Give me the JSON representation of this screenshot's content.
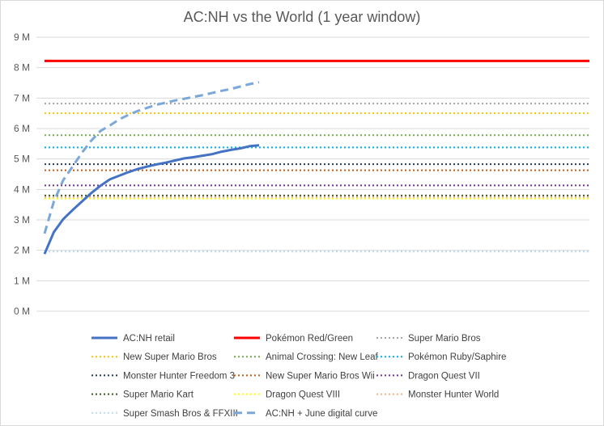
{
  "chart_data": {
    "type": "line",
    "title": "AC:NH vs the World (1 year window)",
    "ylim": [
      0,
      9
    ],
    "y_ticks": [
      "0 M",
      "1 M",
      "2 M",
      "3 M",
      "4 M",
      "5 M",
      "6 M",
      "7 M",
      "8 M",
      "9 M"
    ],
    "grid": "horizontal",
    "legend_position": "bottom",
    "x_weeks": 52,
    "series": [
      {
        "name": "AC:NH retail",
        "color": "#4472C4",
        "style": "solid",
        "width": 3,
        "x": [
          0,
          1,
          2,
          3,
          4,
          5,
          6,
          7,
          8,
          9,
          10,
          11,
          12,
          13,
          14,
          15,
          16,
          17,
          18,
          19,
          20,
          21,
          22,
          23
        ],
        "y": [
          1.88,
          2.6,
          3.02,
          3.32,
          3.6,
          3.88,
          4.12,
          4.33,
          4.45,
          4.57,
          4.67,
          4.75,
          4.82,
          4.88,
          4.95,
          5.02,
          5.06,
          5.11,
          5.16,
          5.24,
          5.3,
          5.35,
          5.42,
          5.45
        ]
      },
      {
        "name": "Pokémon Red/Green",
        "color": "#FF0000",
        "style": "solid",
        "width": 3,
        "y_const": 8.22
      },
      {
        "name": "Super Mario Bros",
        "color": "#A5A5A5",
        "style": "dotted",
        "width": 2,
        "y_const": 6.82
      },
      {
        "name": "New Super Mario Bros",
        "color": "#FFC000",
        "style": "dotted",
        "width": 2,
        "y_const": 6.5
      },
      {
        "name": "Animal Crossing: New Leaf",
        "color": "#70AD47",
        "style": "dotted",
        "width": 2,
        "y_const": 5.78
      },
      {
        "name": "Pokémon Ruby/Saphire",
        "color": "#00B0F0",
        "style": "dotted",
        "width": 2,
        "y_const": 5.38
      },
      {
        "name": "Monster Hunter Freedom 3",
        "color": "#203864",
        "style": "dotted",
        "width": 2,
        "y_const": 4.83
      },
      {
        "name": "New Super Mario Bros Wii",
        "color": "#C55A11",
        "style": "dotted",
        "width": 2,
        "y_const": 4.63
      },
      {
        "name": "Dragon Quest VII",
        "color": "#7030A0",
        "style": "dotted",
        "width": 2,
        "y_const": 4.13
      },
      {
        "name": "Super Mario Kart",
        "color": "#375623",
        "style": "dotted",
        "width": 2,
        "y_const": 3.8
      },
      {
        "name": "Dragon Quest VIII",
        "color": "#FFFF00",
        "style": "dotted",
        "width": 2,
        "y_const": 3.7
      },
      {
        "name": "Monster Hunter World",
        "color": "#F4B183",
        "style": "dotted",
        "width": 2,
        "y_const": 3.75
      },
      {
        "name": "Super Smash Bros & FFXIII",
        "color": "#BDD7EE",
        "style": "dotted",
        "width": 2,
        "y_const": 1.96
      },
      {
        "name": "AC:NH + June digital curve",
        "color": "#7BA7D9",
        "style": "dashed",
        "width": 3,
        "x": [
          0,
          1,
          2,
          3,
          4,
          5,
          6,
          7,
          8,
          9,
          10,
          11,
          12,
          13,
          14,
          15,
          16,
          17,
          18,
          19,
          20,
          21,
          22,
          23
        ],
        "y": [
          2.55,
          3.6,
          4.3,
          4.75,
          5.2,
          5.6,
          5.92,
          6.1,
          6.3,
          6.45,
          6.58,
          6.68,
          6.78,
          6.85,
          6.92,
          6.98,
          7.04,
          7.1,
          7.17,
          7.24,
          7.3,
          7.38,
          7.46,
          7.52
        ]
      }
    ],
    "legend_labels": [
      "AC:NH retail",
      "Pokémon Red/Green",
      "Super Mario Bros",
      "New Super Mario Bros",
      "Animal Crossing: New Leaf",
      "Pokémon Ruby/Saphire",
      "Monster Hunter Freedom 3",
      "New Super Mario Bros Wii",
      "Dragon Quest VII",
      "Super Mario Kart",
      "Dragon Quest VIII",
      "Monster Hunter World",
      "Super Smash Bros & FFXIII",
      "AC:NH + June digital curve"
    ]
  }
}
